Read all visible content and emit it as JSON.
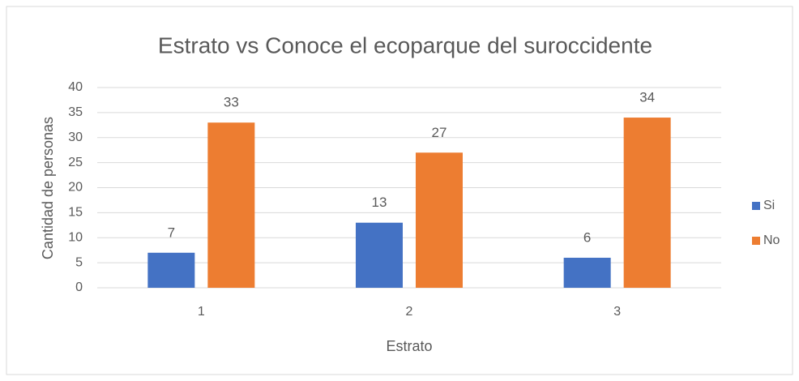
{
  "chart_data": {
    "type": "bar",
    "title": "Estrato vs Conoce el ecoparque del suroccidente",
    "x_label": "Estrato",
    "y_label": "Cantidad de personas",
    "categories": [
      "1",
      "2",
      "3"
    ],
    "series": [
      {
        "name": "Si",
        "color": "#4472c4",
        "values": [
          7,
          13,
          6
        ]
      },
      {
        "name": "No",
        "color": "#ed7d31",
        "values": [
          33,
          27,
          34
        ]
      }
    ],
    "ylim": [
      0,
      40
    ],
    "yticks": [
      0,
      5,
      10,
      15,
      20,
      25,
      30,
      35,
      40
    ],
    "grid": true,
    "legend": "right"
  }
}
